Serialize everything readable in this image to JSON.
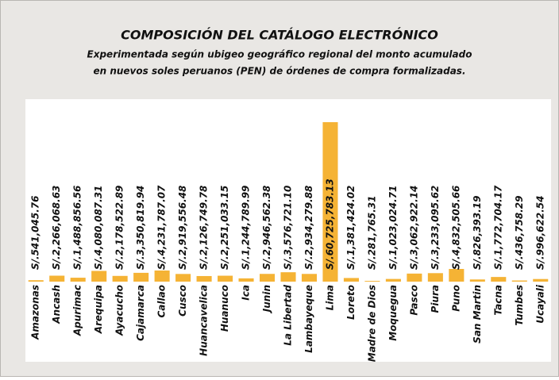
{
  "chart_data": {
    "type": "bar",
    "title": "COMPOSICIÓN DEL CATÁLOGO ELECTRÓNICO",
    "subtitle": [
      "Experimentada según ubigeo geográfico regional del monto acumulado",
      "en nuevos soles peruanos (PEN) de órdenes de compra formalizadas."
    ],
    "categories": [
      "Amazonas",
      "Ancash",
      "Apurimac",
      "Arequipa",
      "Ayacucho",
      "Cajamarca",
      "Callao",
      "Cusco",
      "Huancavelica",
      "Huanuco",
      "Ica",
      "Junin",
      "La Libertad",
      "Lambayeque",
      "Lima",
      "Loreto",
      "Madre de Dios",
      "Moquegua",
      "Pasco",
      "Piura",
      "Puno",
      "San Martin",
      "Tacna",
      "Tumbes",
      "Ucayali"
    ],
    "values": [
      541045.76,
      2266068.63,
      1488856.56,
      4080087.31,
      2178522.89,
      3350819.94,
      4231787.07,
      2919556.48,
      2126749.78,
      2251033.15,
      1244789.99,
      2946562.38,
      3576721.1,
      2934279.88,
      60725783.13,
      1381424.02,
      281765.31,
      1023024.71,
      3062922.14,
      3233095.62,
      4832505.66,
      826393.19,
      1772704.17,
      436758.29,
      996622.54
    ],
    "value_labels": [
      "S/.541,045.76",
      "S/.2,266,068.63",
      "S/.1,488,856.56",
      "S/.4,080,087.31",
      "S/.2,178,522.89",
      "S/.3,350,819.94",
      "S/.4,231,787.07",
      "S/.2,919,556.48",
      "S/.2,126,749.78",
      "S/.2,251,033.15",
      "S/.1,244,789.99",
      "S/.2,946,562.38",
      "S/.3,576,721.10",
      "S/.2,934,279.88",
      "S/.60,725,783.13",
      "S/.1,381,424.02",
      "S/.281,765.31",
      "S/.1,023,024.71",
      "S/.3,062,922.14",
      "S/.3,233,095.62",
      "S/.4,832,505.66",
      "S/.826,393.19",
      "S/.1,772,704.17",
      "S/.436,758.29",
      "S/.996,622.54"
    ],
    "color": "#f5b335"
  }
}
